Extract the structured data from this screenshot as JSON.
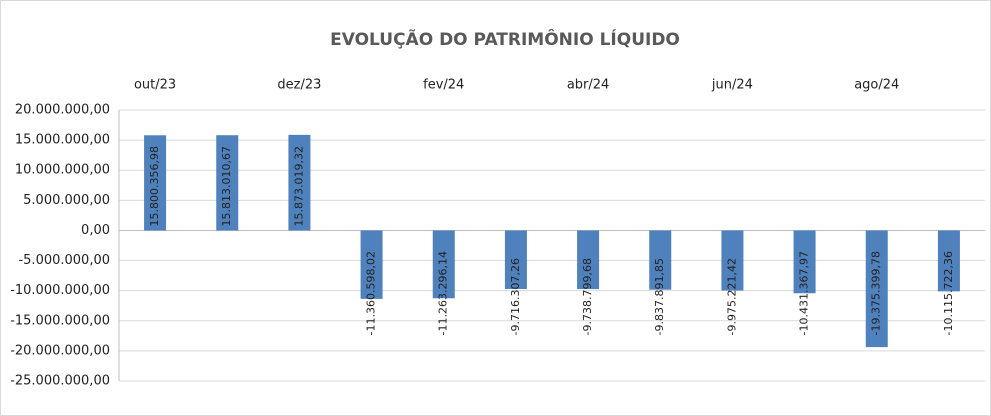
{
  "chart_data": {
    "type": "bar",
    "title": "EVOLUÇÃO DO PATRIMÔNIO LÍQUIDO",
    "categories": [
      "out/23",
      null,
      "dez/23",
      null,
      "fev/24",
      null,
      "abr/24",
      null,
      "jun/24",
      null,
      "ago/24",
      null
    ],
    "values": [
      15800356.98,
      15813010.67,
      15873019.32,
      -11360598.02,
      -11263296.14,
      -9716307.26,
      -9738799.68,
      -9837891.85,
      -9975221.42,
      -10431367.97,
      -19375399.78,
      -10115722.36
    ],
    "value_labels": [
      "15.800.356,98",
      "15.813.010,67",
      "15.873.019,32",
      "-11.360.598,02",
      "-11.263.296,14",
      "-9.716.307,26",
      "-9.738.799,68",
      "-9.837.891,85",
      "-9.975.221,42",
      "-10.431.367,97",
      "-19.375.399,78",
      "-10.115.722,36"
    ],
    "color": "#4f81bd",
    "ylim": [
      -25000000,
      20000000
    ],
    "yticks": [
      {
        "value": 20000000,
        "label": "20.000.000,00"
      },
      {
        "value": 15000000,
        "label": "15.000.000,00"
      },
      {
        "value": 10000000,
        "label": "10.000.000,00"
      },
      {
        "value": 5000000,
        "label": "5.000.000,00"
      },
      {
        "value": 0,
        "label": "0,00"
      },
      {
        "value": -5000000,
        "label": "-5.000.000,00"
      },
      {
        "value": -10000000,
        "label": "-10.000.000,00"
      },
      {
        "value": -15000000,
        "label": "-15.000.000,00"
      },
      {
        "value": -20000000,
        "label": "-20.000.000,00"
      },
      {
        "value": -25000000,
        "label": "-25.000.000,00"
      }
    ],
    "grid": true
  }
}
